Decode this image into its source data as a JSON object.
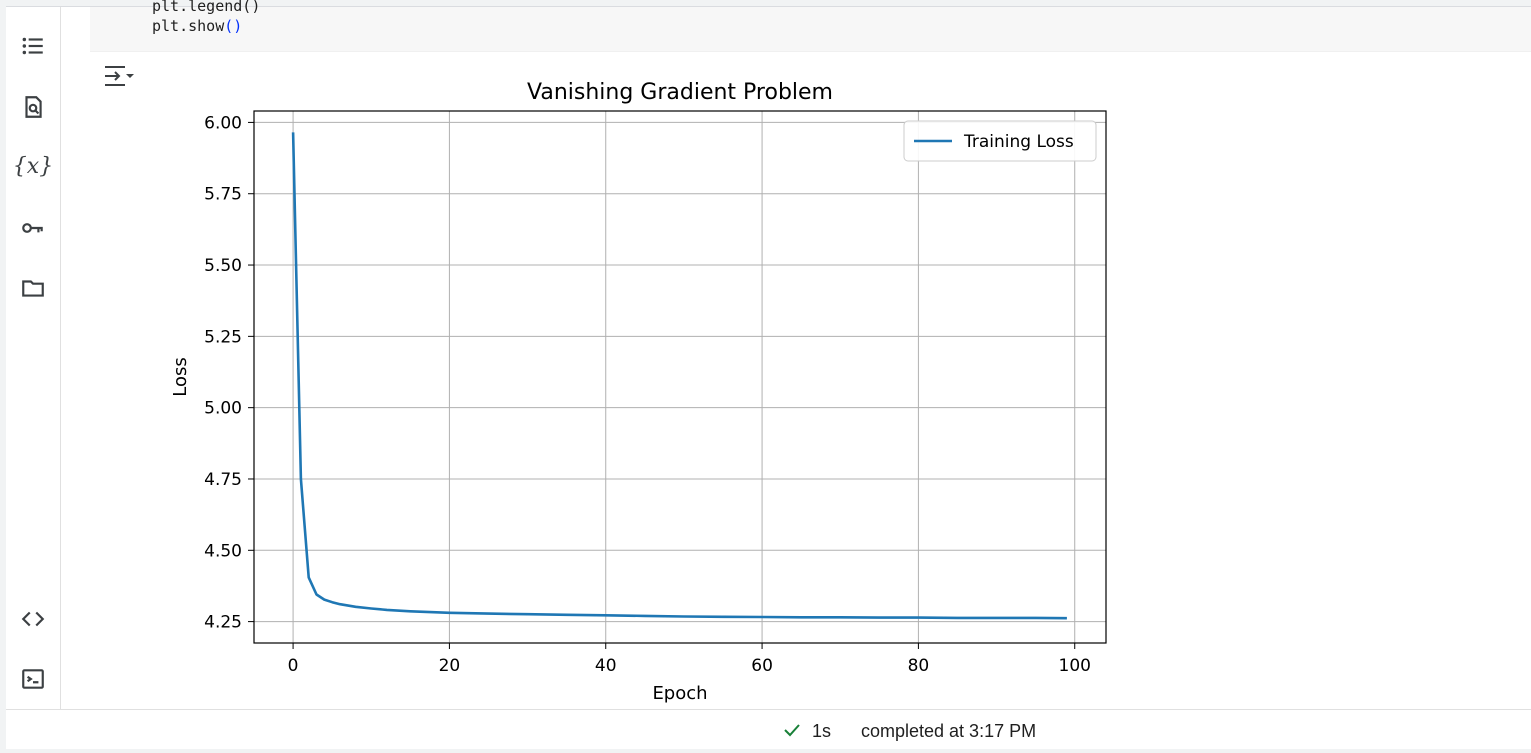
{
  "sidebar": {
    "icons": [
      "table-of-contents-icon",
      "find-replace-icon",
      "variables-icon",
      "secrets-key-icon",
      "files-folder-icon",
      "code-snippets-icon",
      "terminal-icon"
    ],
    "variables_glyph": "{x}"
  },
  "code_cell": {
    "line_partial": "plt.legend()",
    "line_main_prefix": "plt.show",
    "line_main_parens": "()"
  },
  "chart_data": {
    "type": "line",
    "title": "Vanishing Gradient Problem",
    "xlabel": "Epoch",
    "ylabel": "Loss",
    "xlim": [
      -5,
      104
    ],
    "ylim": [
      4.175,
      6.04
    ],
    "xticks": [
      0,
      20,
      40,
      60,
      80,
      100
    ],
    "xtick_labels": [
      "0",
      "20",
      "40",
      "60",
      "80",
      "100"
    ],
    "yticks": [
      4.25,
      4.5,
      4.75,
      5.0,
      5.25,
      5.5,
      5.75,
      6.0
    ],
    "ytick_labels": [
      "4.25",
      "4.50",
      "4.75",
      "5.00",
      "5.25",
      "5.50",
      "5.75",
      "6.00"
    ],
    "grid": true,
    "legend_position": "top-right",
    "series": [
      {
        "name": "Training Loss",
        "color": "#1f77b4",
        "x": [
          0,
          1,
          2,
          3,
          4,
          5,
          6,
          8,
          10,
          12,
          15,
          20,
          25,
          30,
          35,
          40,
          45,
          50,
          55,
          60,
          65,
          70,
          75,
          80,
          85,
          90,
          95,
          99
        ],
        "values": [
          5.965,
          4.75,
          4.405,
          4.345,
          4.327,
          4.318,
          4.311,
          4.302,
          4.296,
          4.291,
          4.286,
          4.281,
          4.278,
          4.276,
          4.274,
          4.272,
          4.27,
          4.268,
          4.267,
          4.266,
          4.265,
          4.265,
          4.264,
          4.264,
          4.263,
          4.263,
          4.263,
          4.262
        ]
      }
    ]
  },
  "status": {
    "duration": "1s",
    "completed": "completed at 3:17 PM",
    "success_color": "#188038"
  }
}
